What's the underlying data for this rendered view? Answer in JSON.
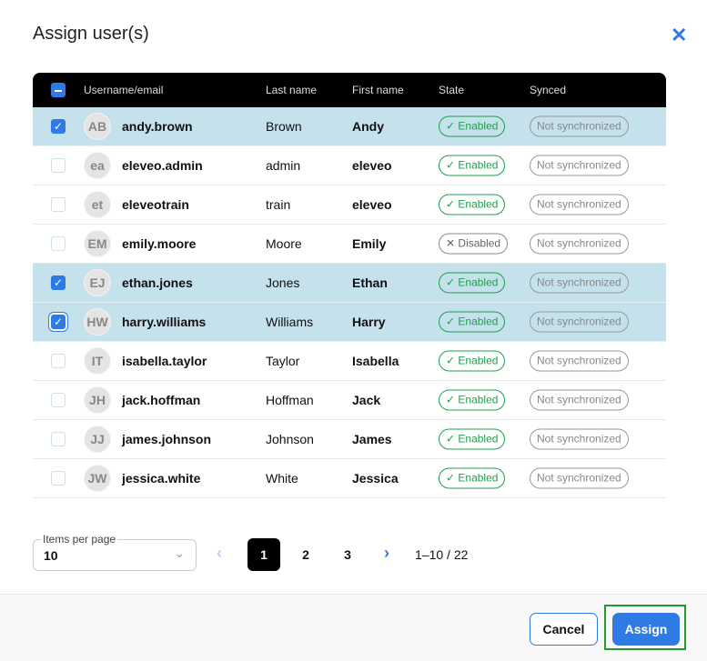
{
  "title": "Assign user(s)",
  "columns": [
    "Username/email",
    "Last name",
    "First name",
    "State",
    "Synced"
  ],
  "rows": [
    {
      "initials": "AB",
      "username": "andy.brown",
      "last": "Brown",
      "first": "Andy",
      "state": "Enabled",
      "synced": "Not synchronized",
      "selected": true
    },
    {
      "initials": "ea",
      "username": "eleveo.admin",
      "last": "admin",
      "first": "eleveo",
      "state": "Enabled",
      "synced": "Not synchronized",
      "selected": false
    },
    {
      "initials": "et",
      "username": "eleveotrain",
      "last": "train",
      "first": "eleveo",
      "state": "Enabled",
      "synced": "Not synchronized",
      "selected": false
    },
    {
      "initials": "EM",
      "username": "emily.moore",
      "last": "Moore",
      "first": "Emily",
      "state": "Disabled",
      "synced": "Not synchronized",
      "selected": false
    },
    {
      "initials": "EJ",
      "username": "ethan.jones",
      "last": "Jones",
      "first": "Ethan",
      "state": "Enabled",
      "synced": "Not synchronized",
      "selected": true
    },
    {
      "initials": "HW",
      "username": "harry.williams",
      "last": "Williams",
      "first": "Harry",
      "state": "Enabled",
      "synced": "Not synchronized",
      "selected": true
    },
    {
      "initials": "IT",
      "username": "isabella.taylor",
      "last": "Taylor",
      "first": "Isabella",
      "state": "Enabled",
      "synced": "Not synchronized",
      "selected": false
    },
    {
      "initials": "JH",
      "username": "jack.hoffman",
      "last": "Hoffman",
      "first": "Jack",
      "state": "Enabled",
      "synced": "Not synchronized",
      "selected": false
    },
    {
      "initials": "JJ",
      "username": "james.johnson",
      "last": "Johnson",
      "first": "James",
      "state": "Enabled",
      "synced": "Not synchronized",
      "selected": false
    },
    {
      "initials": "JW",
      "username": "jessica.white",
      "last": "White",
      "first": "Jessica",
      "state": "Enabled",
      "synced": "Not synchronized",
      "selected": false
    }
  ],
  "pagination": {
    "items_per_page_label": "Items per page",
    "items_per_page": "10",
    "pages": [
      "1",
      "2",
      "3"
    ],
    "current": "1",
    "range": "1–10 / 22"
  },
  "buttons": {
    "cancel": "Cancel",
    "assign": "Assign"
  },
  "colors": {
    "accent": "#2f7be6",
    "enabled": "#1ea04a",
    "selected_row": "#c4e1ec"
  }
}
